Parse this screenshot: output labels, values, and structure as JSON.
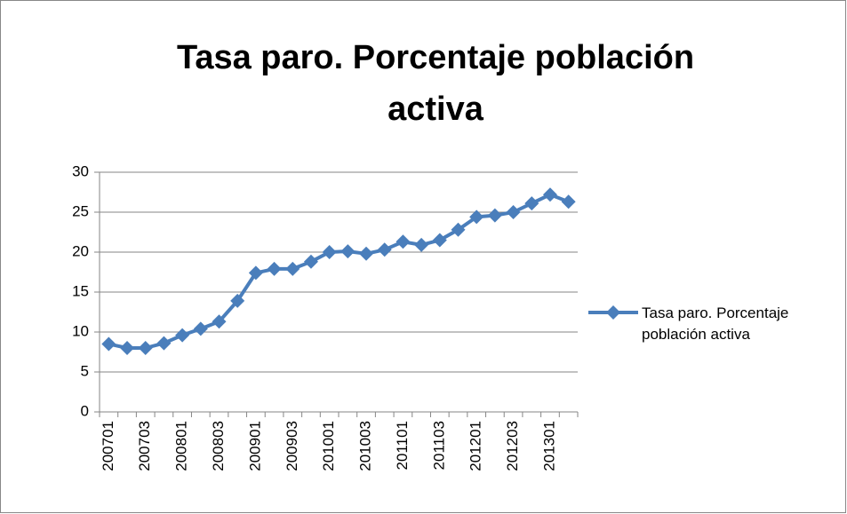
{
  "chart_data": {
    "type": "line",
    "title": "Tasa paro. Porcentaje población activa",
    "categories": [
      "200701",
      null,
      "200703",
      null,
      "200801",
      null,
      "200803",
      null,
      "200901",
      null,
      "200903",
      null,
      "201001",
      null,
      "201003",
      null,
      "201101",
      null,
      "201103",
      null,
      "201201",
      null,
      "201203",
      null,
      "201301",
      null
    ],
    "series": [
      {
        "name": "Tasa paro. Porcentaje población activa",
        "color": "#4a7ebb",
        "values": [
          8.5,
          8.0,
          8.0,
          8.6,
          9.6,
          10.4,
          11.3,
          13.9,
          17.4,
          17.9,
          17.9,
          18.8,
          20.0,
          20.1,
          19.8,
          20.3,
          21.3,
          20.9,
          21.5,
          22.8,
          24.4,
          24.6,
          25.0,
          26.1,
          27.2,
          26.3
        ]
      }
    ],
    "ylim": [
      0,
      30
    ],
    "yticks": [
      0,
      5,
      10,
      15,
      20,
      25,
      30
    ],
    "grid": true,
    "legend": "right"
  }
}
